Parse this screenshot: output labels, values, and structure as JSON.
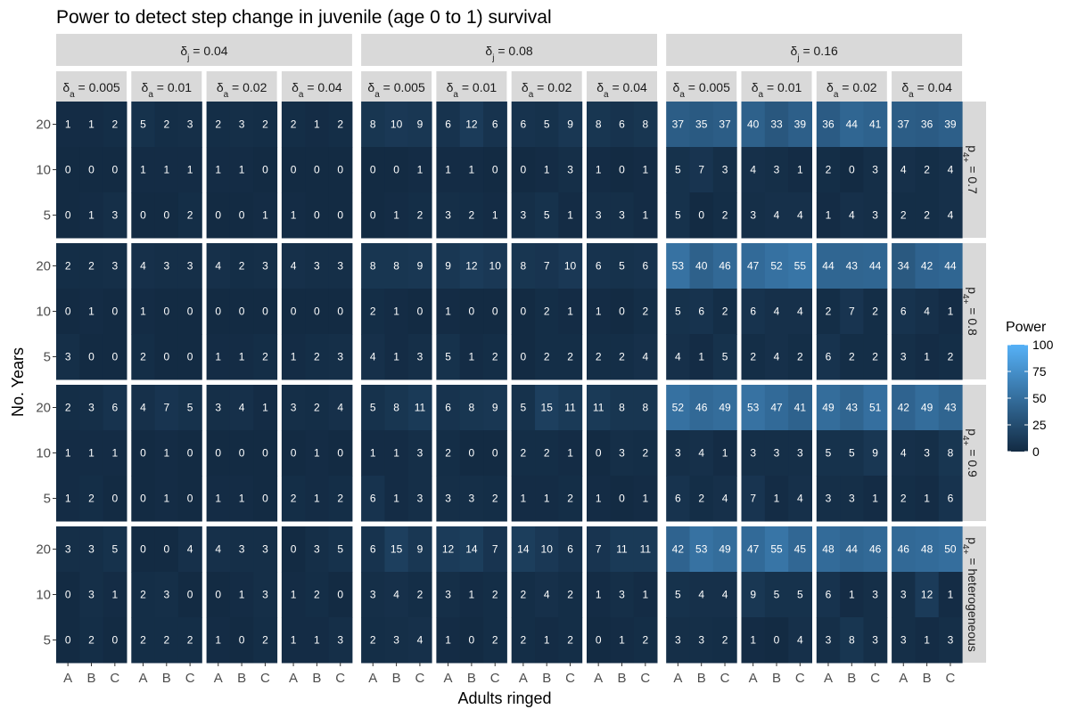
{
  "chart_data": {
    "type": "heatmap",
    "title": "Power to detect step change in juvenile (age 0 to 1) survival",
    "xlabel": "Adults ringed",
    "ylabel": "No. Years",
    "x_categories": [
      "A",
      "B",
      "C"
    ],
    "y_categories": [
      "20",
      "10",
      "5"
    ],
    "col_outer_facets": [
      {
        "sym": "δ",
        "sub": "j",
        "rest": " = 0.04"
      },
      {
        "sym": "δ",
        "sub": "j",
        "rest": " = 0.08"
      },
      {
        "sym": "δ",
        "sub": "j",
        "rest": " = 0.16"
      }
    ],
    "col_inner_facets": [
      {
        "sym": "δ",
        "sub": "a",
        "rest": " = 0.005"
      },
      {
        "sym": "δ",
        "sub": "a",
        "rest": " = 0.01"
      },
      {
        "sym": "δ",
        "sub": "a",
        "rest": " = 0.02"
      },
      {
        "sym": "δ",
        "sub": "a",
        "rest": " = 0.04"
      }
    ],
    "row_facets": [
      {
        "sym": "p",
        "sub": "4+",
        "rest": " = 0.7"
      },
      {
        "sym": "p",
        "sub": "4+",
        "rest": " = 0.8"
      },
      {
        "sym": "p",
        "sub": "4+",
        "rest": " = 0.9"
      },
      {
        "sym": "p",
        "sub": "4+",
        "rest": " = heterogeneous"
      }
    ],
    "legend": {
      "title": "Power",
      "min": 0,
      "max": 100,
      "ticks": [
        100,
        75,
        50,
        25,
        0
      ],
      "low_color": "#132B43",
      "high_color": "#56B1F7",
      "placement": "right"
    },
    "grid": [
      [
        [
          [
            [
              1,
              1,
              2
            ],
            [
              0,
              0,
              0
            ],
            [
              0,
              1,
              3
            ]
          ],
          [
            [
              5,
              2,
              3
            ],
            [
              1,
              1,
              1
            ],
            [
              0,
              0,
              2
            ]
          ],
          [
            [
              2,
              3,
              2
            ],
            [
              1,
              1,
              0
            ],
            [
              0,
              0,
              1
            ]
          ],
          [
            [
              2,
              1,
              2
            ],
            [
              0,
              0,
              0
            ],
            [
              1,
              0,
              0
            ]
          ]
        ],
        [
          [
            [
              8,
              10,
              9
            ],
            [
              0,
              0,
              1
            ],
            [
              0,
              1,
              2
            ]
          ],
          [
            [
              6,
              12,
              6
            ],
            [
              1,
              1,
              0
            ],
            [
              3,
              2,
              1
            ]
          ],
          [
            [
              6,
              5,
              9
            ],
            [
              0,
              1,
              3
            ],
            [
              3,
              5,
              1
            ]
          ],
          [
            [
              8,
              6,
              8
            ],
            [
              1,
              0,
              1
            ],
            [
              3,
              3,
              1
            ]
          ]
        ],
        [
          [
            [
              37,
              35,
              37
            ],
            [
              5,
              7,
              3
            ],
            [
              5,
              0,
              2
            ]
          ],
          [
            [
              40,
              33,
              39
            ],
            [
              4,
              3,
              1
            ],
            [
              3,
              4,
              4
            ]
          ],
          [
            [
              36,
              44,
              41
            ],
            [
              2,
              0,
              3
            ],
            [
              1,
              4,
              3
            ]
          ],
          [
            [
              37,
              36,
              39
            ],
            [
              4,
              2,
              4
            ],
            [
              2,
              2,
              4
            ]
          ]
        ]
      ],
      [
        [
          [
            [
              2,
              2,
              3
            ],
            [
              0,
              1,
              0
            ],
            [
              3,
              0,
              0
            ]
          ],
          [
            [
              4,
              3,
              3
            ],
            [
              1,
              0,
              0
            ],
            [
              2,
              0,
              0
            ]
          ],
          [
            [
              4,
              2,
              3
            ],
            [
              0,
              0,
              0
            ],
            [
              1,
              1,
              2
            ]
          ],
          [
            [
              4,
              3,
              3
            ],
            [
              0,
              0,
              0
            ],
            [
              1,
              2,
              3
            ]
          ]
        ],
        [
          [
            [
              8,
              8,
              9
            ],
            [
              2,
              1,
              0
            ],
            [
              4,
              1,
              3
            ]
          ],
          [
            [
              9,
              12,
              10
            ],
            [
              1,
              0,
              0
            ],
            [
              5,
              1,
              2
            ]
          ],
          [
            [
              8,
              7,
              10
            ],
            [
              0,
              2,
              1
            ],
            [
              0,
              2,
              2
            ]
          ],
          [
            [
              6,
              5,
              6
            ],
            [
              1,
              0,
              2
            ],
            [
              2,
              2,
              4
            ]
          ]
        ],
        [
          [
            [
              53,
              40,
              46
            ],
            [
              5,
              6,
              2
            ],
            [
              4,
              1,
              5
            ]
          ],
          [
            [
              47,
              52,
              55
            ],
            [
              6,
              4,
              4
            ],
            [
              2,
              4,
              2
            ]
          ],
          [
            [
              44,
              43,
              44
            ],
            [
              2,
              7,
              2
            ],
            [
              6,
              2,
              2
            ]
          ],
          [
            [
              34,
              42,
              44
            ],
            [
              6,
              4,
              1
            ],
            [
              3,
              1,
              2
            ]
          ]
        ]
      ],
      [
        [
          [
            [
              2,
              3,
              6
            ],
            [
              1,
              1,
              1
            ],
            [
              1,
              2,
              0
            ]
          ],
          [
            [
              4,
              7,
              5
            ],
            [
              0,
              1,
              0
            ],
            [
              0,
              1,
              0
            ]
          ],
          [
            [
              3,
              4,
              1
            ],
            [
              0,
              0,
              0
            ],
            [
              1,
              1,
              0
            ]
          ],
          [
            [
              3,
              2,
              4
            ],
            [
              0,
              1,
              0
            ],
            [
              2,
              1,
              2
            ]
          ]
        ],
        [
          [
            [
              5,
              8,
              11
            ],
            [
              1,
              1,
              3
            ],
            [
              6,
              1,
              3
            ]
          ],
          [
            [
              6,
              8,
              9
            ],
            [
              2,
              0,
              0
            ],
            [
              3,
              3,
              2
            ]
          ],
          [
            [
              5,
              15,
              11
            ],
            [
              2,
              2,
              1
            ],
            [
              1,
              1,
              2
            ]
          ],
          [
            [
              11,
              8,
              8
            ],
            [
              0,
              3,
              2
            ],
            [
              1,
              0,
              1
            ]
          ]
        ],
        [
          [
            [
              52,
              46,
              49
            ],
            [
              3,
              4,
              1
            ],
            [
              6,
              2,
              4
            ]
          ],
          [
            [
              53,
              47,
              41
            ],
            [
              3,
              3,
              3
            ],
            [
              7,
              1,
              4
            ]
          ],
          [
            [
              49,
              43,
              51
            ],
            [
              5,
              5,
              9
            ],
            [
              3,
              3,
              1
            ]
          ],
          [
            [
              42,
              49,
              43
            ],
            [
              4,
              3,
              8
            ],
            [
              2,
              1,
              6
            ]
          ]
        ]
      ],
      [
        [
          [
            [
              3,
              3,
              5
            ],
            [
              0,
              3,
              1
            ],
            [
              0,
              2,
              0
            ]
          ],
          [
            [
              0,
              0,
              4
            ],
            [
              2,
              3,
              0
            ],
            [
              2,
              2,
              2
            ]
          ],
          [
            [
              4,
              3,
              3
            ],
            [
              0,
              1,
              3
            ],
            [
              1,
              0,
              2
            ]
          ],
          [
            [
              0,
              3,
              5
            ],
            [
              1,
              2,
              0
            ],
            [
              1,
              1,
              3
            ]
          ]
        ],
        [
          [
            [
              6,
              15,
              9
            ],
            [
              3,
              4,
              2
            ],
            [
              2,
              3,
              4
            ]
          ],
          [
            [
              12,
              14,
              7
            ],
            [
              3,
              1,
              2
            ],
            [
              1,
              0,
              2
            ]
          ],
          [
            [
              14,
              10,
              6
            ],
            [
              2,
              4,
              2
            ],
            [
              2,
              1,
              2
            ]
          ],
          [
            [
              7,
              11,
              11
            ],
            [
              1,
              3,
              1
            ],
            [
              0,
              1,
              2
            ]
          ]
        ],
        [
          [
            [
              42,
              53,
              49
            ],
            [
              5,
              4,
              4
            ],
            [
              3,
              3,
              2
            ]
          ],
          [
            [
              47,
              55,
              45
            ],
            [
              9,
              5,
              5
            ],
            [
              1,
              0,
              4
            ]
          ],
          [
            [
              48,
              44,
              46
            ],
            [
              6,
              1,
              3
            ],
            [
              3,
              8,
              3
            ]
          ],
          [
            [
              46,
              48,
              50
            ],
            [
              3,
              12,
              1
            ],
            [
              3,
              1,
              3
            ]
          ]
        ]
      ]
    ]
  }
}
